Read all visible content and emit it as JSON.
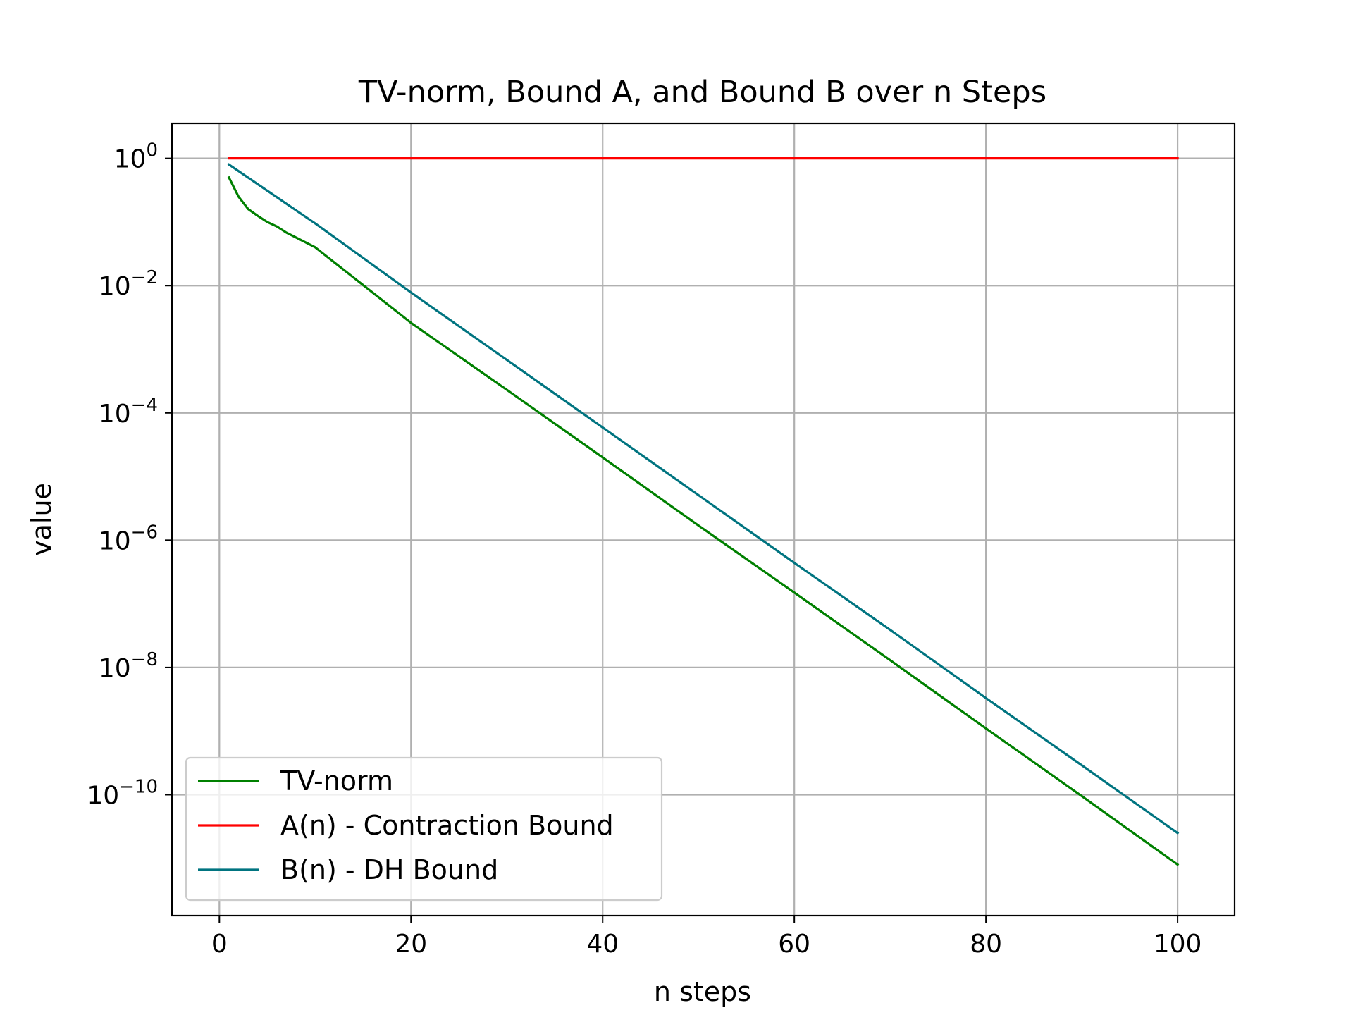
{
  "chart_data": {
    "type": "line",
    "title": "TV-norm, Bound A, and Bound B over n Steps",
    "xlabel": "n steps",
    "ylabel": "value",
    "xscale": "linear",
    "yscale": "log",
    "xlim": [
      -4.95,
      105.95
    ],
    "ylim_log10": [
      -11.9,
      0.55
    ],
    "xticks": [
      0,
      20,
      40,
      60,
      80,
      100
    ],
    "xtick_labels": [
      "0",
      "20",
      "40",
      "60",
      "80",
      "100"
    ],
    "yticks_log10": [
      0,
      -2,
      -4,
      -6,
      -8,
      -10
    ],
    "ytick_labels": [
      {
        "base": "10",
        "exp": "0"
      },
      {
        "base": "10",
        "exp": "−2"
      },
      {
        "base": "10",
        "exp": "−4"
      },
      {
        "base": "10",
        "exp": "−6"
      },
      {
        "base": "10",
        "exp": "−8"
      },
      {
        "base": "10",
        "exp": "−10"
      }
    ],
    "grid": true,
    "legend_position": "lower-left",
    "series": [
      {
        "name": "TV-norm",
        "color": "#008000",
        "description_points": [
          {
            "x": 1,
            "y": 0.5
          },
          {
            "x": 2,
            "y": 0.25
          },
          {
            "x": 3,
            "y": 0.16
          },
          {
            "x": 4,
            "y": 0.125
          },
          {
            "x": 5,
            "y": 0.1
          },
          {
            "x": 6,
            "y": 0.085
          },
          {
            "x": 7,
            "y": 0.068
          },
          {
            "x": 8,
            "y": 0.057
          },
          {
            "x": 10,
            "y": 0.04
          },
          {
            "x": 20,
            "y": 0.0026
          },
          {
            "x": 30,
            "y": 0.00023
          },
          {
            "x": 40,
            "y": 2e-05
          },
          {
            "x": 50,
            "y": 1.7e-06
          },
          {
            "x": 60,
            "y": 1.5e-07
          },
          {
            "x": 70,
            "y": 1.3e-08
          },
          {
            "x": 80,
            "y": 1.1e-09
          },
          {
            "x": 90,
            "y": 9.5e-11
          },
          {
            "x": 100,
            "y": 8e-12
          }
        ]
      },
      {
        "name": "A(n) - Contraction Bound",
        "color": "#ff0000",
        "description_points": [
          {
            "x": 1,
            "y": 1
          },
          {
            "x": 100,
            "y": 1
          }
        ]
      },
      {
        "name": "B(n) - DH Bound",
        "color": "#007480",
        "description_points": [
          {
            "x": 1,
            "y": 0.8
          },
          {
            "x": 10,
            "y": 0.095
          },
          {
            "x": 20,
            "y": 0.0078
          },
          {
            "x": 30,
            "y": 0.00068
          },
          {
            "x": 40,
            "y": 5.9e-05
          },
          {
            "x": 50,
            "y": 5.1e-06
          },
          {
            "x": 60,
            "y": 4.4e-07
          },
          {
            "x": 70,
            "y": 3.9e-08
          },
          {
            "x": 80,
            "y": 3.3e-09
          },
          {
            "x": 90,
            "y": 2.9e-10
          },
          {
            "x": 100,
            "y": 2.5e-11
          }
        ]
      }
    ]
  }
}
